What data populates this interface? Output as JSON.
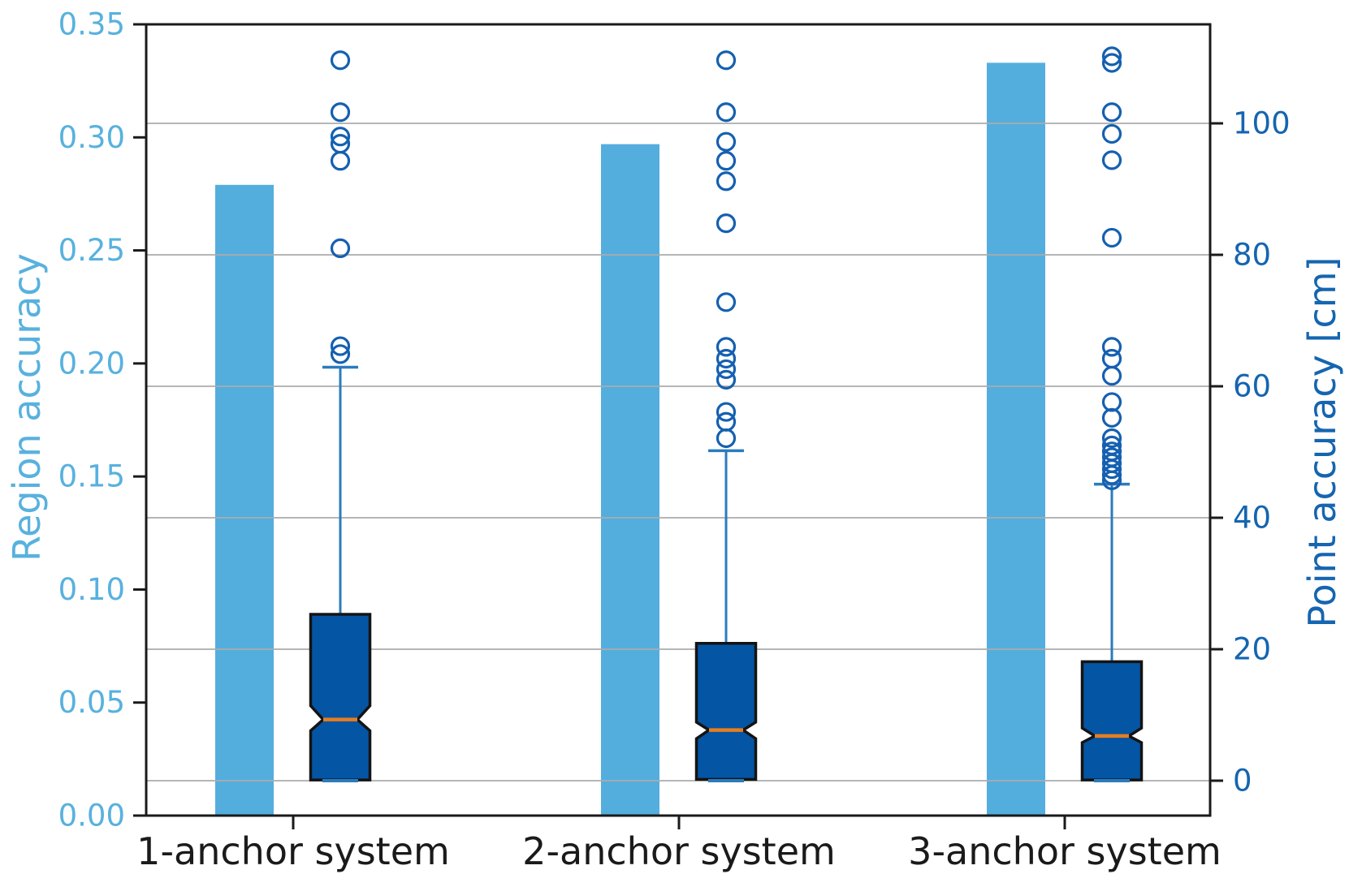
{
  "chart_data": {
    "type": "bar+boxplot",
    "title": "",
    "categories": [
      "1-anchor system",
      "2-anchor system",
      "3-anchor system"
    ],
    "grid": true,
    "legend": "none",
    "left_axis": {
      "label": "Region accuracy",
      "lim": [
        0,
        0.35
      ],
      "tick_values": [
        0,
        0.05,
        0.1,
        0.15,
        0.2,
        0.25,
        0.3,
        0.35
      ],
      "tick_labels": [
        "0.00",
        "0.05",
        "0.10",
        "0.15",
        "0.20",
        "0.25",
        "0.30",
        "0.35"
      ],
      "text_color": "#58b1de"
    },
    "right_axis": {
      "label": "Point accuracy [cm]",
      "lim": [
        -5.31,
        115.06
      ],
      "tick_values": [
        0,
        20,
        40,
        60,
        80,
        100
      ],
      "tick_labels": [
        "0",
        "20",
        "40",
        "60",
        "80",
        "100"
      ],
      "text_color": "#1565b0"
    },
    "bar_series": {
      "name": "Region accuracy",
      "values": [
        0.279,
        0.297,
        0.333
      ],
      "color": "#53aedd"
    },
    "box_series": {
      "name": "Point accuracy [cm]",
      "boxes": [
        {
          "whisker_lo": 0.0,
          "q1": 0.1,
          "median": 9.3,
          "q3": 25.3,
          "whisker_hi": 62.9,
          "notch_lo": 7.6,
          "notch_hi": 11.4,
          "outliers": [
            109.6,
            101.7,
            98.0,
            96.9,
            94.3,
            81.0,
            66.1,
            64.9
          ]
        },
        {
          "whisker_lo": 0.0,
          "q1": 0.2,
          "median": 7.7,
          "q3": 20.9,
          "whisker_hi": 50.2,
          "notch_lo": 6.4,
          "notch_hi": 8.9,
          "outliers": [
            109.6,
            101.7,
            97.2,
            94.3,
            91.2,
            84.8,
            72.8,
            66.0,
            64.2,
            62.6,
            61.0,
            56.1,
            54.6,
            52.1
          ]
        },
        {
          "whisker_lo": 0.0,
          "q1": 0.1,
          "median": 6.8,
          "q3": 18.1,
          "whisker_hi": 45.1,
          "notch_lo": 5.8,
          "notch_hi": 8.0,
          "outliers": [
            110.2,
            109.2,
            101.7,
            98.4,
            94.4,
            82.6,
            66.0,
            64.2,
            61.6,
            57.6,
            55.2,
            52.1,
            51.0,
            50.1,
            49.2,
            48.3,
            47.4,
            46.5,
            45.7
          ]
        }
      ],
      "box_fill": "#0455a4",
      "box_edge": "#141414",
      "median_color": "#e87d1e",
      "whisker_color": "#2b7bbd",
      "flier_color": "#1560b0"
    },
    "colors": {
      "gridline": "#ababab",
      "spine": "#1a1a1a",
      "x_text": "#1a1a1a"
    }
  }
}
